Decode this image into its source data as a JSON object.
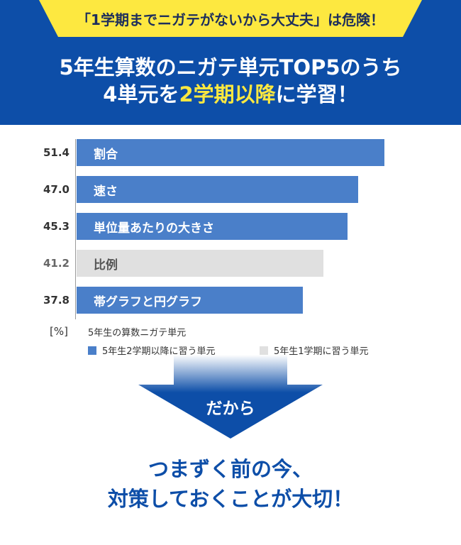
{
  "header": {
    "ribbon": "「1学期までニガテがないから大丈夫」は危険！",
    "headline": {
      "line1": "5年生算数のニガテ単元TOP5のうち",
      "line2_part1": "4単元を",
      "line2_part2": "2学期以降",
      "line2_part3": "に学習！"
    }
  },
  "chart_data": {
    "type": "bar",
    "orientation": "horizontal",
    "categories": [
      "割合",
      "速さ",
      "単位量あたりの大きさ",
      "比例",
      "帯グラフと円グラフ"
    ],
    "values": [
      51.4,
      47.0,
      45.3,
      41.2,
      37.8
    ],
    "value_labels": [
      "51.4",
      "47.0",
      "45.3",
      "41.2",
      "37.8"
    ],
    "groups": [
      "2nd",
      "2nd",
      "2nd",
      "1st",
      "2nd"
    ],
    "xlim": [
      0,
      60
    ],
    "unit": "[%]",
    "title": "5年生の算数ニガテ単元",
    "legend": [
      {
        "key": "2nd",
        "label": "5年生2学期以降に習う単元",
        "color": "#4a7fc9"
      },
      {
        "key": "1st",
        "label": "5年生1学期に習う単元",
        "color": "#e0e0e0"
      }
    ],
    "legend_placement": "bottom",
    "grid": false
  },
  "arrow": {
    "label": "だから",
    "color_top": "#ffffff",
    "color_bottom": "#0d4ea8"
  },
  "conclusion": {
    "line1": "つまずく前の今、",
    "line2": "対策しておくことが大切！"
  }
}
